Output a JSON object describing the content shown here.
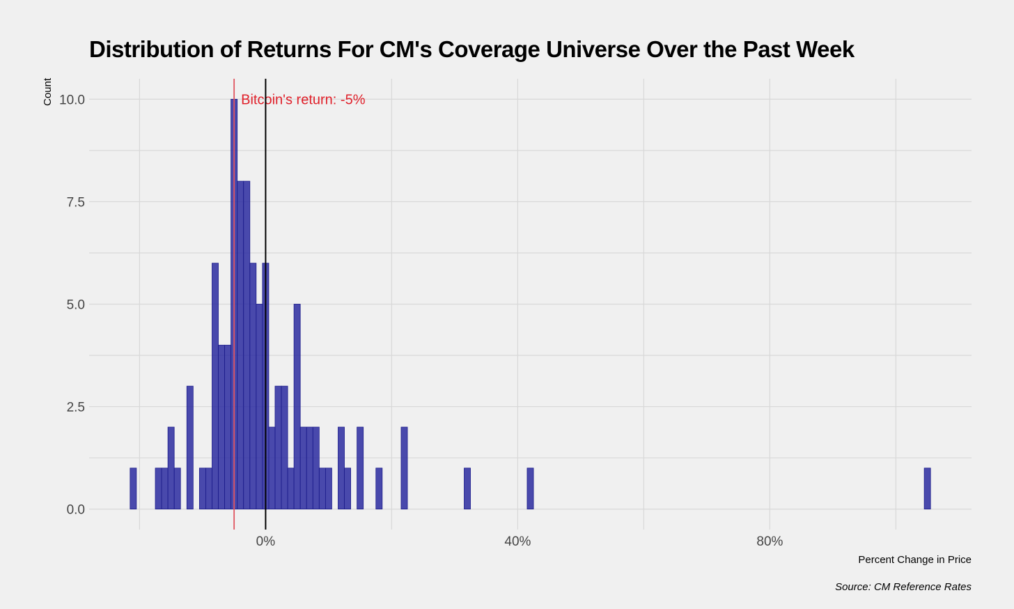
{
  "chart_data": {
    "type": "bar",
    "subtype": "histogram",
    "title": "Distribution of Returns For CM's Coverage Universe Over the Past Week",
    "xlabel": "Percent Change in Price",
    "ylabel": "Count",
    "caption": "Source: CM Reference Rates",
    "xlim": [
      -28,
      112
    ],
    "ylim": [
      -0.5,
      10.5
    ],
    "x_ticks": [
      0,
      40,
      80
    ],
    "x_tick_labels": [
      "0%",
      "40%",
      "80%"
    ],
    "y_ticks": [
      0,
      2.5,
      5,
      7.5,
      10
    ],
    "y_tick_labels": [
      "0.0",
      "2.5",
      "5.0",
      "7.5",
      "10.0"
    ],
    "bin_width": 1,
    "bars": [
      {
        "x": -21,
        "count": 1
      },
      {
        "x": -17,
        "count": 1
      },
      {
        "x": -16,
        "count": 1
      },
      {
        "x": -15,
        "count": 2
      },
      {
        "x": -14,
        "count": 1
      },
      {
        "x": -12,
        "count": 3
      },
      {
        "x": -10,
        "count": 1
      },
      {
        "x": -9,
        "count": 1
      },
      {
        "x": -8,
        "count": 6
      },
      {
        "x": -7,
        "count": 4
      },
      {
        "x": -6,
        "count": 4
      },
      {
        "x": -5,
        "count": 10
      },
      {
        "x": -4,
        "count": 8
      },
      {
        "x": -3,
        "count": 8
      },
      {
        "x": -2,
        "count": 6
      },
      {
        "x": -1,
        "count": 5
      },
      {
        "x": 0,
        "count": 6
      },
      {
        "x": 1,
        "count": 2
      },
      {
        "x": 2,
        "count": 3
      },
      {
        "x": 3,
        "count": 3
      },
      {
        "x": 4,
        "count": 1
      },
      {
        "x": 5,
        "count": 5
      },
      {
        "x": 6,
        "count": 2
      },
      {
        "x": 7,
        "count": 2
      },
      {
        "x": 8,
        "count": 2
      },
      {
        "x": 9,
        "count": 1
      },
      {
        "x": 10,
        "count": 1
      },
      {
        "x": 12,
        "count": 2
      },
      {
        "x": 13,
        "count": 1
      },
      {
        "x": 15,
        "count": 2
      },
      {
        "x": 18,
        "count": 1
      },
      {
        "x": 22,
        "count": 2
      },
      {
        "x": 32,
        "count": 1
      },
      {
        "x": 42,
        "count": 1
      },
      {
        "x": 105,
        "count": 1
      }
    ],
    "reference_lines": [
      {
        "x": -5,
        "color": "#e05560",
        "label": "Bitcoin's return: -5%"
      },
      {
        "x": 0,
        "color": "#000000",
        "label": ""
      }
    ],
    "grid": true,
    "bar_color": "#2b2ba0",
    "background": "#f0f0f0"
  }
}
